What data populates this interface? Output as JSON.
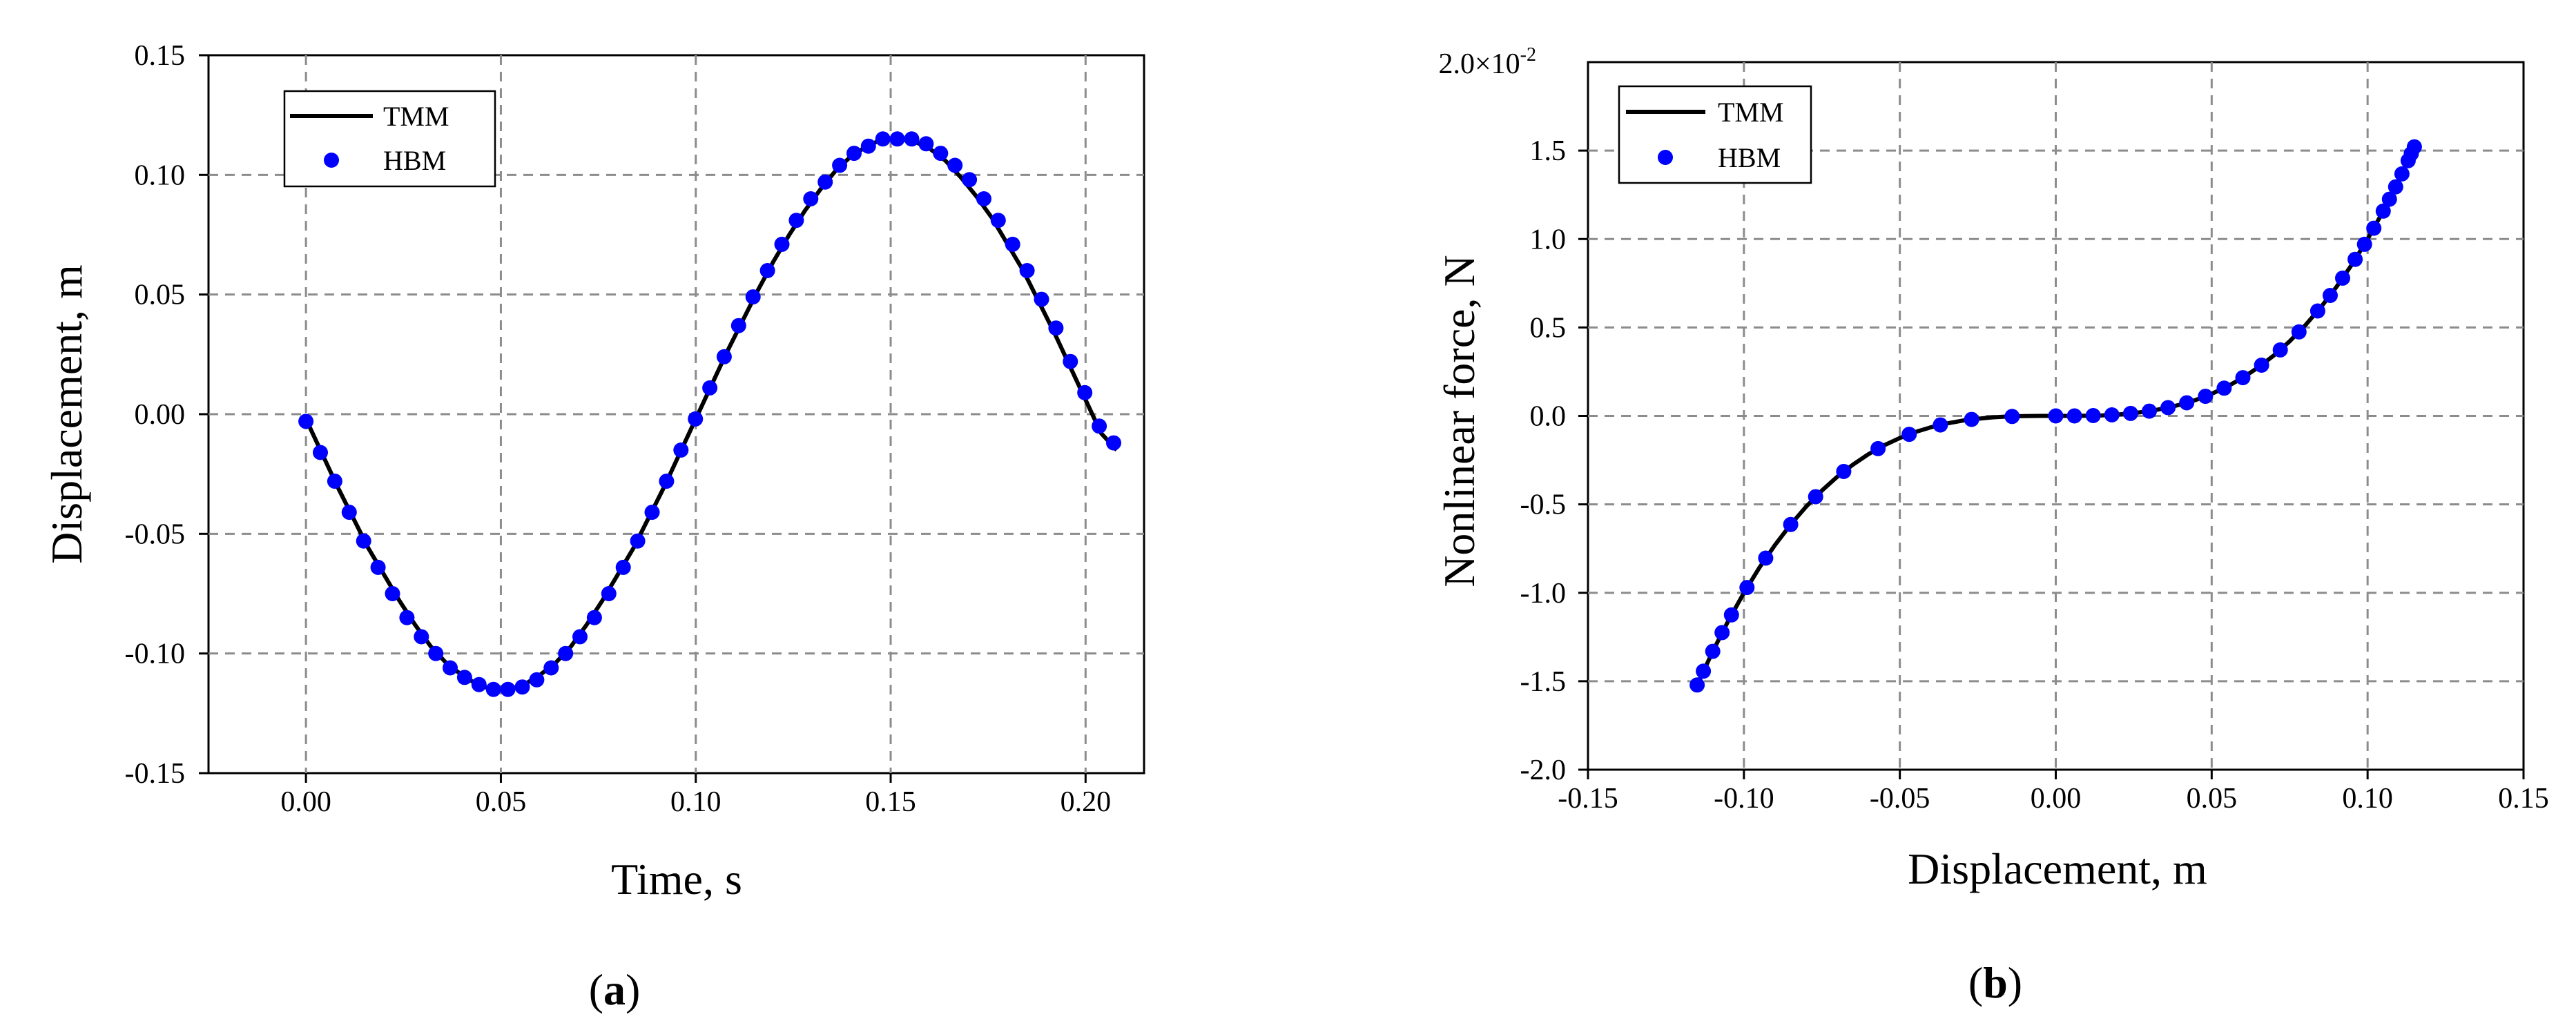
{
  "chart_data": [
    {
      "type": "line",
      "panel_label": "a",
      "xlabel": "Time, s",
      "ylabel": "Displacement, m",
      "xlim": [
        -0.025,
        0.215
      ],
      "ylim": [
        -0.15,
        0.15
      ],
      "xticks": [
        0.0,
        0.05,
        0.1,
        0.15,
        0.2
      ],
      "xtick_labels": [
        "0.00",
        "0.05",
        "0.10",
        "0.15",
        "0.20"
      ],
      "yticks": [
        -0.15,
        -0.1,
        -0.05,
        0.0,
        0.05,
        0.1,
        0.15
      ],
      "ytick_labels": [
        "-0.15",
        "-0.10",
        "-0.05",
        "0.00",
        "0.05",
        "0.10",
        "0.15"
      ],
      "grid": true,
      "legend_position": "top-left",
      "series": [
        {
          "name": "TMM",
          "style": "line",
          "color": "#000000",
          "x": [
            0.0,
            0.004,
            0.008,
            0.012,
            0.016,
            0.02,
            0.024,
            0.028,
            0.032,
            0.036,
            0.04,
            0.044,
            0.048,
            0.052,
            0.056,
            0.06,
            0.064,
            0.068,
            0.072,
            0.076,
            0.08,
            0.084,
            0.088,
            0.092,
            0.096,
            0.1,
            0.104,
            0.108,
            0.112,
            0.116,
            0.12,
            0.124,
            0.128,
            0.132,
            0.136,
            0.14,
            0.144,
            0.148,
            0.152,
            0.156,
            0.16,
            0.164,
            0.168,
            0.172,
            0.176,
            0.18,
            0.184,
            0.188,
            0.192,
            0.196,
            0.2,
            0.204,
            0.208
          ],
          "y": [
            -0.002,
            -0.016,
            -0.03,
            -0.043,
            -0.056,
            -0.067,
            -0.078,
            -0.088,
            -0.097,
            -0.104,
            -0.109,
            -0.113,
            -0.115,
            -0.115,
            -0.113,
            -0.109,
            -0.104,
            -0.097,
            -0.088,
            -0.078,
            -0.067,
            -0.056,
            -0.043,
            -0.03,
            -0.016,
            -0.002,
            0.012,
            0.026,
            0.039,
            0.052,
            0.064,
            0.075,
            0.085,
            0.094,
            0.102,
            0.108,
            0.112,
            0.115,
            0.115,
            0.114,
            0.111,
            0.106,
            0.099,
            0.091,
            0.082,
            0.071,
            0.06,
            0.047,
            0.034,
            0.02,
            0.006,
            -0.008,
            -0.015
          ]
        },
        {
          "name": "HBM",
          "style": "markers",
          "color": "#0000ff",
          "x": [
            0.0,
            0.0037,
            0.0074,
            0.0111,
            0.0148,
            0.0185,
            0.0222,
            0.0259,
            0.0296,
            0.0333,
            0.037,
            0.0407,
            0.0444,
            0.0481,
            0.0518,
            0.0555,
            0.0592,
            0.0629,
            0.0666,
            0.0703,
            0.074,
            0.0777,
            0.0814,
            0.0851,
            0.0888,
            0.0925,
            0.0962,
            0.0999,
            0.1036,
            0.1073,
            0.111,
            0.1147,
            0.1184,
            0.1221,
            0.1258,
            0.1295,
            0.1332,
            0.1369,
            0.1406,
            0.1443,
            0.148,
            0.1517,
            0.1554,
            0.1591,
            0.1628,
            0.1665,
            0.1702,
            0.1739,
            0.1776,
            0.1813,
            0.185,
            0.1887,
            0.1924,
            0.1961,
            0.1998,
            0.2035,
            0.2072
          ],
          "y": [
            -0.003,
            -0.016,
            -0.028,
            -0.041,
            -0.053,
            -0.064,
            -0.075,
            -0.085,
            -0.093,
            -0.1,
            -0.106,
            -0.11,
            -0.113,
            -0.115,
            -0.115,
            -0.114,
            -0.111,
            -0.106,
            -0.1,
            -0.093,
            -0.085,
            -0.075,
            -0.064,
            -0.053,
            -0.041,
            -0.028,
            -0.015,
            -0.002,
            0.011,
            0.024,
            0.037,
            0.049,
            0.06,
            0.071,
            0.081,
            0.09,
            0.097,
            0.104,
            0.109,
            0.112,
            0.115,
            0.115,
            0.115,
            0.113,
            0.109,
            0.104,
            0.098,
            0.09,
            0.081,
            0.071,
            0.06,
            0.048,
            0.036,
            0.022,
            0.009,
            -0.005,
            -0.012
          ]
        }
      ]
    },
    {
      "type": "line",
      "panel_label": "b",
      "xlabel": "Displacement, m",
      "ylabel": "Nonlinear force, N",
      "xlim": [
        -0.15,
        0.15
      ],
      "ylim": [
        -2.0,
        2.0
      ],
      "y_scale_label": "2.0×10",
      "y_scale_exponent": "-2",
      "xticks": [
        -0.15,
        -0.1,
        -0.05,
        0.0,
        0.05,
        0.1,
        0.15
      ],
      "xtick_labels": [
        "-0.15",
        "-0.10",
        "-0.05",
        "0.00",
        "0.05",
        "0.10",
        "0.15"
      ],
      "yticks": [
        -2.0,
        -1.5,
        -1.0,
        -0.5,
        0.0,
        0.5,
        1.0,
        1.5
      ],
      "ytick_labels": [
        "-2.0",
        "-1.5",
        "-1.0",
        "-0.5",
        "0.0",
        "0.5",
        "1.0",
        "1.5"
      ],
      "grid": true,
      "legend_position": "top-left",
      "series": [
        {
          "name": "TMM",
          "style": "line",
          "color": "#000000",
          "x": [
            -0.115,
            -0.11,
            -0.105,
            -0.1,
            -0.095,
            -0.09,
            -0.085,
            -0.08,
            -0.075,
            -0.07,
            -0.065,
            -0.06,
            -0.055,
            -0.05,
            -0.045,
            -0.04,
            -0.035,
            -0.03,
            -0.025,
            -0.02,
            -0.015,
            -0.01,
            -0.005,
            0.0,
            0.005,
            0.01,
            0.015,
            0.02,
            0.025,
            0.03,
            0.035,
            0.04,
            0.045,
            0.05,
            0.055,
            0.06,
            0.065,
            0.07,
            0.075,
            0.08,
            0.085,
            0.09,
            0.095,
            0.1,
            0.105,
            0.11,
            0.115
          ],
          "y": [
            -1.521,
            -1.331,
            -1.158,
            -1.0,
            -0.857,
            -0.729,
            -0.614,
            -0.512,
            -0.422,
            -0.343,
            -0.275,
            -0.216,
            -0.166,
            -0.125,
            -0.091,
            -0.064,
            -0.043,
            -0.027,
            -0.016,
            -0.008,
            -0.003,
            -0.001,
            0.0,
            0.0,
            0.0,
            0.001,
            0.003,
            0.008,
            0.016,
            0.027,
            0.043,
            0.064,
            0.091,
            0.125,
            0.166,
            0.216,
            0.275,
            0.343,
            0.422,
            0.512,
            0.614,
            0.729,
            0.857,
            1.0,
            1.158,
            1.331,
            1.521
          ]
        },
        {
          "name": "HBM",
          "style": "markers",
          "color": "#0000ff",
          "x": [
            -0.115,
            -0.113,
            -0.11,
            -0.107,
            -0.104,
            -0.099,
            -0.093,
            -0.085,
            -0.077,
            -0.068,
            -0.057,
            -0.047,
            -0.037,
            -0.027,
            -0.014,
            0.0,
            0.006,
            0.012,
            0.018,
            0.024,
            0.03,
            0.036,
            0.042,
            0.048,
            0.054,
            0.06,
            0.066,
            0.072,
            0.078,
            0.084,
            0.088,
            0.092,
            0.096,
            0.099,
            0.102,
            0.105,
            0.107,
            0.109,
            0.111,
            0.113,
            0.114,
            0.115
          ],
          "y": [
            -1.521,
            -1.443,
            -1.331,
            -1.225,
            -1.125,
            -0.97,
            -0.804,
            -0.614,
            -0.457,
            -0.314,
            -0.185,
            -0.104,
            -0.051,
            -0.02,
            -0.003,
            0.0,
            0.0,
            0.002,
            0.006,
            0.014,
            0.027,
            0.047,
            0.074,
            0.111,
            0.157,
            0.216,
            0.287,
            0.373,
            0.475,
            0.593,
            0.681,
            0.779,
            0.885,
            0.97,
            1.061,
            1.158,
            1.225,
            1.295,
            1.368,
            1.443,
            1.482,
            1.521
          ]
        }
      ]
    }
  ]
}
